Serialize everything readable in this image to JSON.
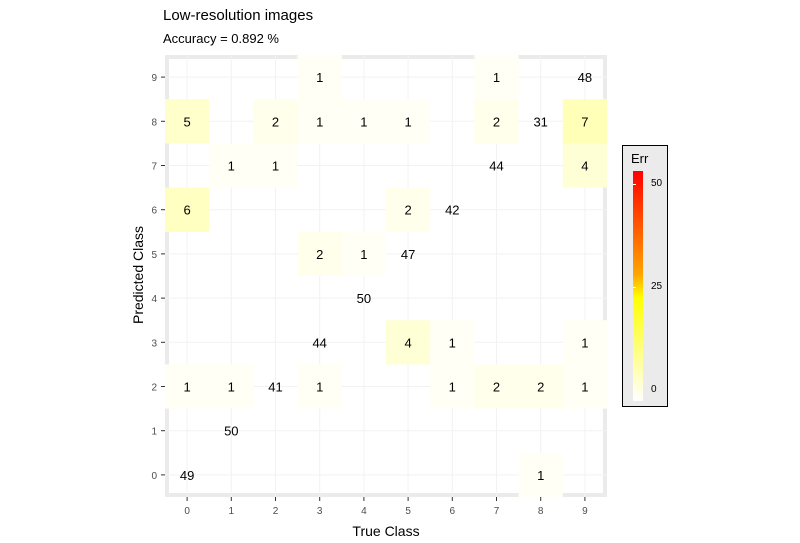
{
  "title": "Low-resolution images",
  "subtitle": "Accuracy =  0.892 %",
  "colors": {
    "panel_background": "#ebebeb",
    "grid": "#ffffff",
    "low": "#ffffff",
    "mid": "#ffff00",
    "high": "#ff0000"
  },
  "legend": {
    "title": "Err",
    "ticks": [
      "50",
      "25",
      "0"
    ]
  },
  "chart_data": {
    "type": "heatmap",
    "xlabel": "True Class",
    "ylabel": "Predicted Class",
    "x_categories": [
      "0",
      "1",
      "2",
      "3",
      "4",
      "5",
      "6",
      "7",
      "8",
      "9"
    ],
    "y_categories": [
      "0",
      "1",
      "2",
      "3",
      "4",
      "5",
      "6",
      "7",
      "8",
      "9"
    ],
    "fill_range": [
      0,
      50
    ],
    "cells": [
      {
        "x": 0,
        "y": 0,
        "value": 49,
        "err": 0
      },
      {
        "x": 8,
        "y": 0,
        "value": 1,
        "err": 1
      },
      {
        "x": 1,
        "y": 1,
        "value": 50,
        "err": 0
      },
      {
        "x": 0,
        "y": 2,
        "value": 1,
        "err": 1
      },
      {
        "x": 1,
        "y": 2,
        "value": 1,
        "err": 1
      },
      {
        "x": 2,
        "y": 2,
        "value": 41,
        "err": 0
      },
      {
        "x": 3,
        "y": 2,
        "value": 1,
        "err": 1
      },
      {
        "x": 6,
        "y": 2,
        "value": 1,
        "err": 1
      },
      {
        "x": 7,
        "y": 2,
        "value": 2,
        "err": 2
      },
      {
        "x": 8,
        "y": 2,
        "value": 2,
        "err": 2
      },
      {
        "x": 9,
        "y": 2,
        "value": 1,
        "err": 1
      },
      {
        "x": 3,
        "y": 3,
        "value": 44,
        "err": 0
      },
      {
        "x": 5,
        "y": 3,
        "value": 4,
        "err": 4
      },
      {
        "x": 6,
        "y": 3,
        "value": 1,
        "err": 1
      },
      {
        "x": 9,
        "y": 3,
        "value": 1,
        "err": 1
      },
      {
        "x": 4,
        "y": 4,
        "value": 50,
        "err": 0
      },
      {
        "x": 3,
        "y": 5,
        "value": 2,
        "err": 2
      },
      {
        "x": 4,
        "y": 5,
        "value": 1,
        "err": 1
      },
      {
        "x": 5,
        "y": 5,
        "value": 47,
        "err": 0
      },
      {
        "x": 0,
        "y": 6,
        "value": 6,
        "err": 6
      },
      {
        "x": 5,
        "y": 6,
        "value": 2,
        "err": 2
      },
      {
        "x": 6,
        "y": 6,
        "value": 42,
        "err": 0
      },
      {
        "x": 1,
        "y": 7,
        "value": 1,
        "err": 1
      },
      {
        "x": 2,
        "y": 7,
        "value": 1,
        "err": 1
      },
      {
        "x": 7,
        "y": 7,
        "value": 44,
        "err": 0
      },
      {
        "x": 9,
        "y": 7,
        "value": 4,
        "err": 4
      },
      {
        "x": 0,
        "y": 8,
        "value": 5,
        "err": 5
      },
      {
        "x": 2,
        "y": 8,
        "value": 2,
        "err": 2
      },
      {
        "x": 3,
        "y": 8,
        "value": 1,
        "err": 1
      },
      {
        "x": 4,
        "y": 8,
        "value": 1,
        "err": 1
      },
      {
        "x": 5,
        "y": 8,
        "value": 1,
        "err": 1
      },
      {
        "x": 7,
        "y": 8,
        "value": 2,
        "err": 2
      },
      {
        "x": 8,
        "y": 8,
        "value": 31,
        "err": 0
      },
      {
        "x": 9,
        "y": 8,
        "value": 7,
        "err": 7
      },
      {
        "x": 3,
        "y": 9,
        "value": 1,
        "err": 1
      },
      {
        "x": 7,
        "y": 9,
        "value": 1,
        "err": 1
      },
      {
        "x": 9,
        "y": 9,
        "value": 48,
        "err": 0
      }
    ]
  }
}
